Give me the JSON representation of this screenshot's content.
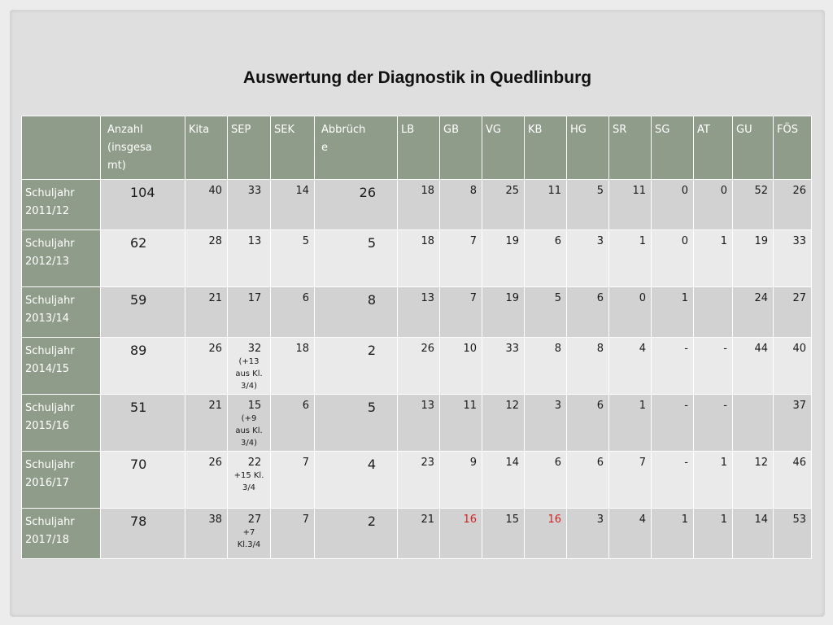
{
  "title": "Auswertung der Diagnostik in Quedlinburg",
  "headers": [
    "",
    "Anzahl (insgesamt)",
    "Kita",
    "SEP",
    "SEK",
    "Abbrüche",
    "LB",
    "GB",
    "VG",
    "KB",
    "HG",
    "SR",
    "SG",
    "AT",
    "GU",
    "FÖS"
  ],
  "header_display": {
    "anzahl": [
      "Anzahl",
      "(insgesa",
      "mt)"
    ],
    "abbrueche": [
      "Abbrüch",
      "e"
    ]
  },
  "rows": [
    {
      "label": [
        "Schuljahr",
        "2011/12"
      ],
      "anzahl": "104",
      "kita": "40",
      "sep": "33",
      "sep_note": [],
      "sek": "14",
      "abbr": "26",
      "lb": "18",
      "gb": "8",
      "vg": "25",
      "kb": "11",
      "hg": "5",
      "sr": "11",
      "sg": "0",
      "at": "0",
      "gu": "52",
      "foes": "26"
    },
    {
      "label": [
        "Schuljahr",
        "2012/13"
      ],
      "anzahl": "62",
      "kita": "28",
      "sep": "13",
      "sep_note": [],
      "sek": "5",
      "abbr": "5",
      "lb": "18",
      "gb": "7",
      "vg": "19",
      "kb": "6",
      "hg": "3",
      "sr": "1",
      "sg": "0",
      "at": "1",
      "gu": "19",
      "foes": "33"
    },
    {
      "label": [
        "Schuljahr",
        "2013/14"
      ],
      "anzahl": "59",
      "kita": "21",
      "sep": "17",
      "sep_note": [],
      "sek": "6",
      "abbr": "8",
      "lb": "13",
      "gb": "7",
      "vg": "19",
      "kb": "5",
      "hg": "6",
      "sr": "0",
      "sg": "1",
      "at": "",
      "gu": "24",
      "foes": "27"
    },
    {
      "label": [
        "Schuljahr",
        "2014/15"
      ],
      "anzahl": "89",
      "kita": "26",
      "sep": "32",
      "sep_note": [
        "(+13",
        "aus Kl.",
        "3/4)"
      ],
      "sek": "18",
      "abbr": "2",
      "lb": "26",
      "gb": "10",
      "vg": "33",
      "kb": "8",
      "hg": "8",
      "sr": "4",
      "sg": "-",
      "at": "-",
      "gu": "44",
      "foes": "40"
    },
    {
      "label": [
        "Schuljahr",
        "2015/16"
      ],
      "anzahl": "51",
      "kita": "21",
      "sep": "15",
      "sep_note": [
        "(+9",
        "aus Kl.",
        "3/4)"
      ],
      "sek": "6",
      "abbr": "5",
      "lb": "13",
      "gb": "11",
      "vg": "12",
      "kb": "3",
      "hg": "6",
      "sr": "1",
      "sg": "-",
      "at": "-",
      "gu": "",
      "foes": "37"
    },
    {
      "label": [
        "Schuljahr",
        "2016/17"
      ],
      "anzahl": "70",
      "kita": "26",
      "sep": "22",
      "sep_note": [
        "+15 Kl.",
        "3/4"
      ],
      "sek": "7",
      "abbr": "4",
      "lb": "23",
      "gb": "9",
      "vg": "14",
      "kb": "6",
      "hg": "6",
      "sr": "7",
      "sg": "-",
      "at": "1",
      "gu": "12",
      "foes": "46"
    },
    {
      "label": [
        "Schuljahr",
        "2017/18"
      ],
      "anzahl": "78",
      "kita": "38",
      "sep": "27",
      "sep_note": [
        "+7",
        "Kl.3/4"
      ],
      "sek": "7",
      "abbr": "2",
      "lb": "21",
      "gb": "16",
      "vg": "15",
      "kb": "16",
      "hg": "3",
      "sr": "4",
      "sg": "1",
      "at": "1",
      "gu": "14",
      "foes": "53"
    }
  ],
  "colors": {
    "header_bg": "#8f9c8a",
    "row_dark": "#d2d2d2",
    "row_light": "#eaeaea",
    "highlight_red": "#d42222"
  }
}
